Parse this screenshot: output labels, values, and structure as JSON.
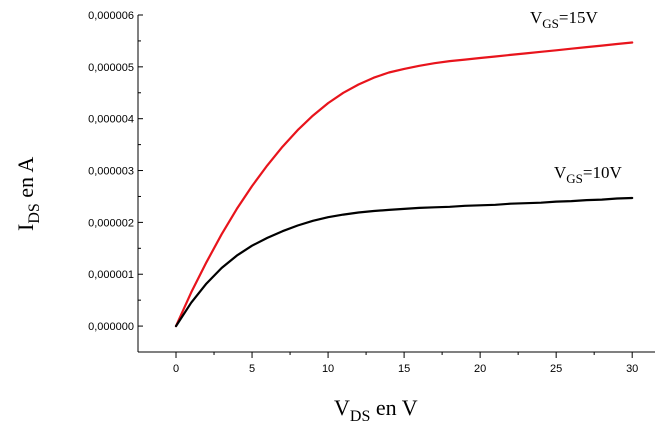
{
  "chart_data": {
    "type": "line",
    "xlabel": {
      "main": "V",
      "sub": "DS",
      "rest": " en V"
    },
    "ylabel": {
      "main": "I",
      "sub": "DS",
      "rest": " en A"
    },
    "xlim": [
      -2.5,
      31.5
    ],
    "ylim": [
      -5e-07,
      6e-06
    ],
    "x_ticks": [
      0,
      5,
      10,
      15,
      20,
      25,
      30
    ],
    "x_tick_labels": [
      "0",
      "5",
      "10",
      "15",
      "20",
      "25",
      "30"
    ],
    "y_ticks": [
      0,
      1e-06,
      2e-06,
      3e-06,
      4e-06,
      5e-06,
      6e-06
    ],
    "y_tick_labels": [
      "0,000000",
      "0,000001",
      "0,000002",
      "0,000003",
      "0,000004",
      "0,000005",
      "0,000006"
    ],
    "grid": false,
    "series": [
      {
        "label": {
          "main": "V",
          "sub": "GS",
          "rest": "=15V"
        },
        "color": "#e8141c",
        "x": [
          0,
          1,
          2,
          3,
          4,
          5,
          6,
          7,
          8,
          9,
          10,
          11,
          12,
          13,
          14,
          15,
          16,
          17,
          18,
          19,
          20,
          21,
          22,
          23,
          24,
          25,
          26,
          27,
          28,
          29,
          30
        ],
        "y": [
          0,
          6.5e-07,
          1.23e-06,
          1.77e-06,
          2.26e-06,
          2.7e-06,
          3.1e-06,
          3.46e-06,
          3.78e-06,
          4.06e-06,
          4.3e-06,
          4.5e-06,
          4.66e-06,
          4.79e-06,
          4.89e-06,
          4.96e-06,
          5.02e-06,
          5.07e-06,
          5.11e-06,
          5.14e-06,
          5.17e-06,
          5.2e-06,
          5.23e-06,
          5.26e-06,
          5.29e-06,
          5.32e-06,
          5.35e-06,
          5.38e-06,
          5.41e-06,
          5.44e-06,
          5.47e-06
        ]
      },
      {
        "label": {
          "main": "V",
          "sub": "GS",
          "rest": "=10V"
        },
        "color": "#000000",
        "x": [
          0,
          1,
          2,
          3,
          4,
          5,
          6,
          7,
          8,
          9,
          10,
          11,
          12,
          13,
          14,
          15,
          16,
          17,
          18,
          19,
          20,
          21,
          22,
          23,
          24,
          25,
          26,
          27,
          28,
          29,
          30
        ],
        "y": [
          0,
          4.5e-07,
          8.2e-07,
          1.12e-06,
          1.36e-06,
          1.55e-06,
          1.7e-06,
          1.83e-06,
          1.94e-06,
          2.03e-06,
          2.1e-06,
          2.15e-06,
          2.19e-06,
          2.22e-06,
          2.24e-06,
          2.26e-06,
          2.28e-06,
          2.29e-06,
          2.3e-06,
          2.32e-06,
          2.33e-06,
          2.34e-06,
          2.36e-06,
          2.37e-06,
          2.38e-06,
          2.4e-06,
          2.41e-06,
          2.43e-06,
          2.44e-06,
          2.46e-06,
          2.47e-06
        ]
      }
    ]
  }
}
